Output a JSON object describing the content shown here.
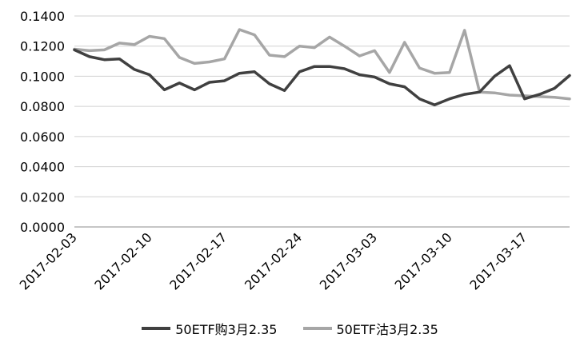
{
  "chart_data": {
    "type": "line",
    "title": "",
    "xlabel": "",
    "ylabel": "",
    "ylim": [
      0,
      0.14
    ],
    "yticks": [
      "0.0000",
      "0.0200",
      "0.0400",
      "0.0600",
      "0.0800",
      "0.1000",
      "0.1200",
      "0.1400"
    ],
    "grid": true,
    "legend_position": "bottom",
    "x": [
      "2017-02-03",
      "2017-02-06",
      "2017-02-07",
      "2017-02-08",
      "2017-02-09",
      "2017-02-10",
      "2017-02-13",
      "2017-02-14",
      "2017-02-15",
      "2017-02-16",
      "2017-02-17",
      "2017-02-20",
      "2017-02-21",
      "2017-02-22",
      "2017-02-23",
      "2017-02-24",
      "2017-02-27",
      "2017-02-28",
      "2017-03-01",
      "2017-03-02",
      "2017-03-03",
      "2017-03-06",
      "2017-03-07",
      "2017-03-08",
      "2017-03-09",
      "2017-03-10",
      "2017-03-13",
      "2017-03-14",
      "2017-03-15",
      "2017-03-16",
      "2017-03-17",
      "2017-03-20",
      "2017-03-21",
      "2017-03-22"
    ],
    "x_tick_labels": [
      "2017-02-03",
      "2017-02-10",
      "2017-02-17",
      "2017-02-24",
      "2017-03-03",
      "2017-03-10",
      "2017-03-17"
    ],
    "series": [
      {
        "name": "50ETF购3月2.35",
        "color": "#404040",
        "values": [
          0.1175,
          0.113,
          0.111,
          0.1115,
          0.1045,
          0.101,
          0.091,
          0.0955,
          0.091,
          0.096,
          0.097,
          0.102,
          0.103,
          0.095,
          0.0905,
          0.103,
          0.1065,
          0.1065,
          0.105,
          0.101,
          0.0995,
          0.095,
          0.093,
          0.085,
          0.081,
          0.085,
          0.088,
          0.0895,
          0.1,
          0.107,
          0.085,
          0.088,
          0.092,
          0.1005
        ]
      },
      {
        "name": "50ETF沽3月2.35",
        "color": "#a6a6a6",
        "values": [
          0.118,
          0.117,
          0.1175,
          0.122,
          0.121,
          0.1265,
          0.125,
          0.1125,
          0.1085,
          0.1095,
          0.1115,
          0.131,
          0.1275,
          0.114,
          0.113,
          0.12,
          0.119,
          0.126,
          0.12,
          0.1135,
          0.117,
          0.1025,
          0.1225,
          0.1055,
          0.102,
          0.1025,
          0.1305,
          0.0895,
          0.089,
          0.0875,
          0.087,
          0.0865,
          0.086,
          0.085
        ]
      }
    ]
  }
}
